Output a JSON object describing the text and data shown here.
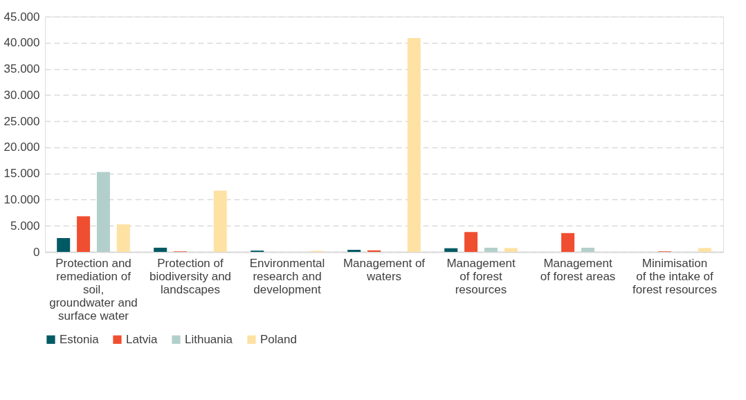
{
  "chart_data": {
    "type": "bar",
    "categories": [
      "Protection and remediation of soil, groundwater and surface water",
      "Protection of biodiversity and landscapes",
      "Environmental research and development",
      "Management of waters",
      "Management of forest resources",
      "Management of forest areas",
      "Minimisation of the intake of forest resources"
    ],
    "series": [
      {
        "name": "Estonia",
        "color": "#005a64",
        "values": [
          2650,
          800,
          250,
          400,
          700,
          0,
          0
        ]
      },
      {
        "name": "Latvia",
        "color": "#f04e30",
        "values": [
          6800,
          100,
          0,
          300,
          3800,
          3600,
          100
        ]
      },
      {
        "name": "Lithuania",
        "color": "#b3cfcc",
        "values": [
          15300,
          0,
          0,
          0,
          800,
          800,
          0
        ]
      },
      {
        "name": "Poland",
        "color": "#fee2a3",
        "values": [
          5270,
          11700,
          200,
          40900,
          750,
          0,
          750
        ]
      }
    ],
    "ylim": [
      0,
      45000
    ],
    "yticks": [
      {
        "value": 0,
        "label": "0"
      },
      {
        "value": 5000,
        "label": "5.000"
      },
      {
        "value": 10000,
        "label": "10.000"
      },
      {
        "value": 15000,
        "label": "15.000"
      },
      {
        "value": 20000,
        "label": "20.000"
      },
      {
        "value": 25000,
        "label": "25.000"
      },
      {
        "value": 30000,
        "label": "30.000"
      },
      {
        "value": 35000,
        "label": "35.000"
      },
      {
        "value": 40000,
        "label": "40.000"
      },
      {
        "value": 45000,
        "label": "45.000"
      }
    ],
    "grid": "y",
    "legend": "bottom"
  }
}
